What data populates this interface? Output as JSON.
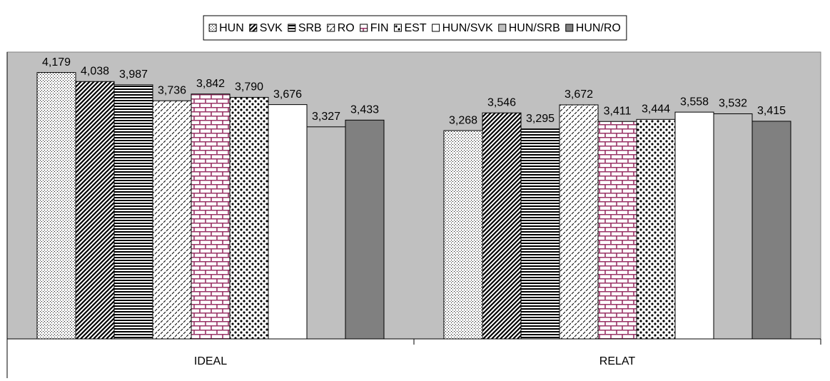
{
  "chart_data": {
    "type": "bar",
    "categories": [
      "IDEAL",
      "RELAT"
    ],
    "ylim": [
      0,
      4.5
    ],
    "legend": "top",
    "plot_background": "#c0c0c0",
    "series": [
      {
        "name": "HUN",
        "color": "#ffffff",
        "pattern": "fine-dots",
        "values": [
          4.179,
          3.268
        ],
        "value_labels": [
          "4,179",
          "3,268"
        ]
      },
      {
        "name": "SVK",
        "color": "#000000",
        "pattern": "diagonal",
        "values": [
          4.038,
          3.546
        ],
        "value_labels": [
          "4,038",
          "3,546"
        ]
      },
      {
        "name": "SRB",
        "color": "#000000",
        "pattern": "horizontal",
        "values": [
          3.987,
          3.295
        ],
        "value_labels": [
          "3,987",
          "3,295"
        ]
      },
      {
        "name": "RO",
        "color": "#ffffff",
        "pattern": "dashes",
        "values": [
          3.736,
          3.672
        ],
        "value_labels": [
          "3,736",
          "3,672"
        ]
      },
      {
        "name": "FIN",
        "color": "#993366",
        "pattern": "brick",
        "values": [
          3.842,
          3.411
        ],
        "value_labels": [
          "3,842",
          "3,411"
        ]
      },
      {
        "name": "EST",
        "color": "#000000",
        "pattern": "big-dots",
        "values": [
          3.79,
          3.444
        ],
        "value_labels": [
          "3,790",
          "3,444"
        ]
      },
      {
        "name": "HUN/SVK",
        "color": "#ffffff",
        "values": [
          3.676,
          3.558
        ],
        "value_labels": [
          "3,676",
          "3,558"
        ]
      },
      {
        "name": "HUN/SRB",
        "color": "#c0c0c0",
        "values": [
          3.327,
          3.532
        ],
        "value_labels": [
          "3,327",
          "3,532"
        ]
      },
      {
        "name": "HUN/RO",
        "color": "#808080",
        "values": [
          3.433,
          3.415
        ],
        "value_labels": [
          "3,433",
          "3,415"
        ]
      }
    ]
  }
}
